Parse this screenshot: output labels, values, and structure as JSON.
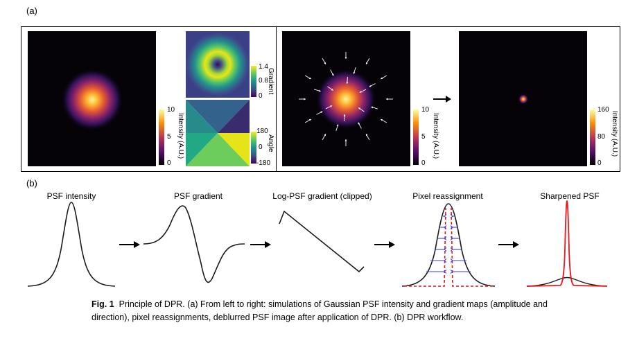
{
  "panel_a": {
    "label": "(a)",
    "colorbars": {
      "psf_intensity": {
        "title": "Intensity (A.U.)",
        "max": "10",
        "mid": "5",
        "min": "0"
      },
      "gradient": {
        "title": "Gradient",
        "max": "1.4",
        "mid": "0.8",
        "min": "0"
      },
      "angle": {
        "title": "Angle",
        "max": "180",
        "mid": "0",
        "min": "-180"
      },
      "reassign_intensity": {
        "title": "Intensity (A.U.)",
        "max": "10",
        "mid": "5",
        "min": "0"
      },
      "deblurred_intensity": {
        "title": "Intensity (A.U.)",
        "max": "160",
        "mid": "80",
        "min": "0"
      }
    }
  },
  "panel_b": {
    "label": "(b)",
    "steps": [
      "PSF intensity",
      "PSF gradient",
      "Log-PSF gradient (clipped)",
      "Pixel reassignment",
      "Sharpened PSF"
    ]
  },
  "caption": {
    "fig": "Fig. 1",
    "title": "Principle of DPR.",
    "text": "(a) From left to right: simulations of Gaussian PSF intensity and gradient maps (amplitude and direction), pixel reassignments, deblurred PSF image after application of DPR. (b) DPR workflow."
  },
  "colors": {
    "line": "#1a1a1a",
    "red": "#e41a1c",
    "blue": "#3a3aff"
  }
}
